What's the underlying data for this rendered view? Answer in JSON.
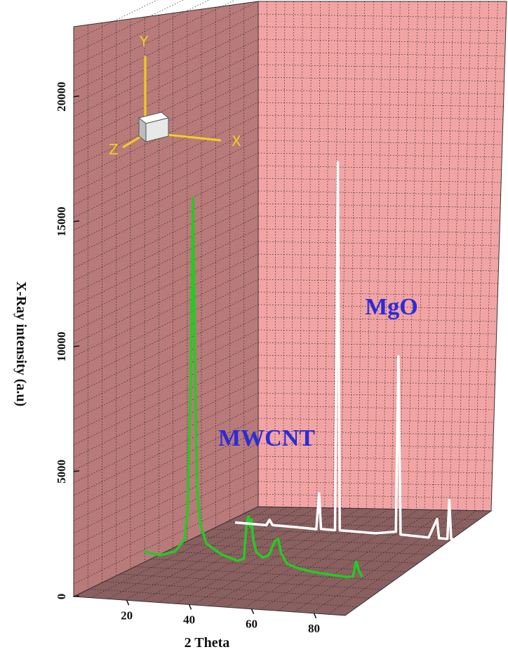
{
  "chart_data": {
    "type": "line3d",
    "ylabel": "X-Ray intensity (a.u)",
    "xlabel": "2 Theta",
    "xlim": [
      3,
      90
    ],
    "xticks": [
      20,
      40,
      60,
      80
    ],
    "ylim": [
      0,
      22800
    ],
    "yticks": [
      0,
      5000,
      10000,
      15000,
      20000
    ],
    "orientation_axes": [
      "X",
      "Y",
      "Z"
    ],
    "series": [
      {
        "name": "MWCNT",
        "color": "#22cc22",
        "x": [
          10,
          15,
          20,
          23,
          24,
          25,
          25.7,
          26.3,
          27,
          28,
          30,
          35,
          40,
          42,
          43,
          43.5,
          44,
          44.5,
          45,
          46,
          48,
          50,
          52,
          53,
          54,
          56,
          60,
          65,
          70,
          75,
          77,
          78,
          79,
          80
        ],
        "values": [
          900,
          800,
          1000,
          1500,
          2700,
          8000,
          15200,
          9000,
          3600,
          2200,
          1400,
          1000,
          800,
          900,
          2400,
          2600,
          2200,
          2500,
          1700,
          1200,
          1000,
          1100,
          1700,
          1800,
          1200,
          800,
          650,
          550,
          500,
          450,
          500,
          1100,
          700,
          500
        ]
      },
      {
        "name": "MgO",
        "color": "#ffffff",
        "x": [
          10,
          20,
          21,
          22,
          30,
          36,
          36.9,
          37.5,
          42,
          42.9,
          43.5,
          55,
          61.5,
          62.3,
          63,
          72,
          74.7,
          75.3,
          78,
          78.6,
          79.2,
          80
        ],
        "values": [
          300,
          280,
          500,
          300,
          280,
          260,
          1700,
          280,
          270,
          15000,
          280,
          260,
          380,
          7400,
          280,
          240,
          1000,
          240,
          240,
          1800,
          240,
          240
        ]
      }
    ]
  }
}
